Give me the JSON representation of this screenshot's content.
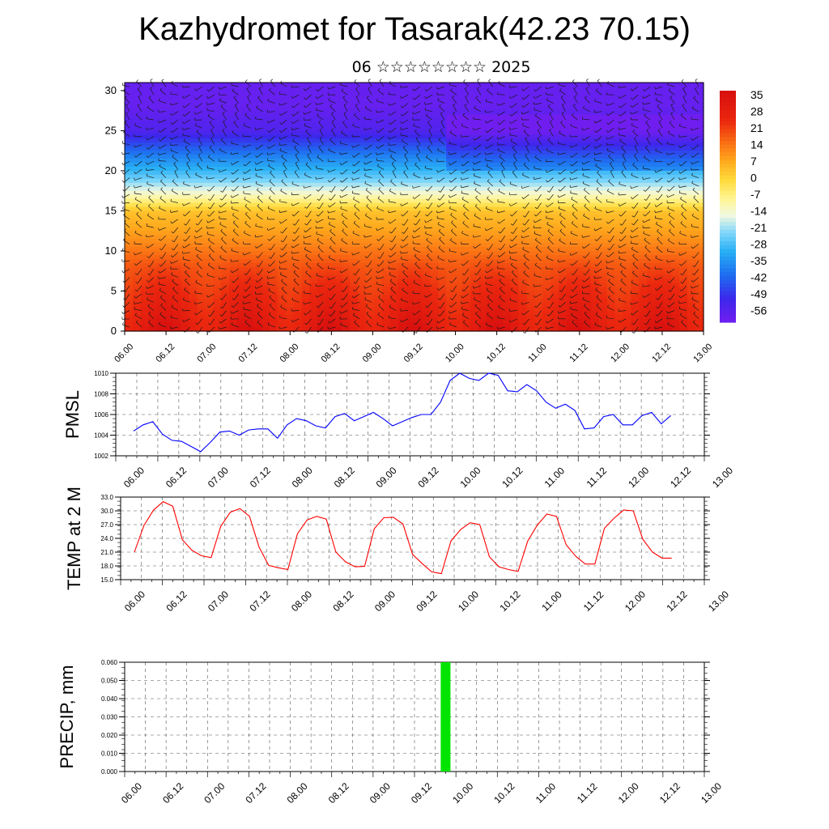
{
  "title": "Kazhydromet for Tasarak(42.23 70.15)",
  "subtitle": "06 ☆☆☆☆☆☆☆☆ 2025",
  "chart_data": [
    {
      "type": "heatmap",
      "name": "temperature-wind-cross-section",
      "x_tick_labels": [
        "06.00",
        "06.12",
        "07.00",
        "07.12",
        "08.00",
        "08.12",
        "09.00",
        "09.12",
        "10.00",
        "10.12",
        "11.00",
        "11.12",
        "12.00",
        "12.12",
        "13.00"
      ],
      "y_tick_labels": [
        "0",
        "5",
        "10",
        "15",
        "20",
        "25",
        "30"
      ],
      "ylim": [
        0,
        31
      ],
      "colorbar_labels": [
        "35",
        "28",
        "21",
        "14",
        "7",
        "0",
        "-7",
        "-14",
        "-21",
        "-28",
        "-35",
        "-42",
        "-49",
        "-56"
      ],
      "colorbar_range": [
        -60,
        38
      ],
      "colors": {
        "cold": "#7a1ef0",
        "warm": "#e8140a",
        "neutral": "#fff6b4"
      },
      "profile_levels": [
        0,
        4,
        8,
        12,
        15,
        17,
        19,
        22,
        25,
        28,
        31
      ],
      "profile_temperatures": [
        32,
        26,
        20,
        10,
        4,
        -12,
        -24,
        -38,
        -54,
        -58,
        -58
      ],
      "wind_barbs": true
    },
    {
      "type": "line",
      "name": "pmsl",
      "ylabel": "PMSL",
      "ylim": [
        1002,
        1010
      ],
      "y_tick_labels": [
        "1002",
        "1004",
        "1006",
        "1008",
        "1010"
      ],
      "y_ticks": [
        1002,
        1004,
        1006,
        1008,
        1010
      ],
      "x_tick_labels": [
        "06.00",
        "06.12",
        "07.00",
        "07.12",
        "08.00",
        "08.12",
        "09.00",
        "09.12",
        "10.00",
        "10.12",
        "11.00",
        "11.12",
        "12.00",
        "12.12",
        "13.00"
      ],
      "x_step_hours": 3,
      "color": "#0000ff",
      "values": [
        1004.4,
        1005.0,
        1005.3,
        1004.1,
        1003.5,
        1003.4,
        1002.9,
        1002.4,
        1003.3,
        1004.3,
        1004.4,
        1004.0,
        1004.5,
        1004.6,
        1004.6,
        1003.7,
        1005.0,
        1005.6,
        1005.4,
        1004.9,
        1004.7,
        1005.8,
        1006.1,
        1005.4,
        1005.8,
        1006.2,
        1005.6,
        1004.9,
        1005.3,
        1005.7,
        1006.0,
        1006.0,
        1007.2,
        1009.3,
        1010.0,
        1009.5,
        1009.3,
        1010.0,
        1009.8,
        1008.3,
        1008.2,
        1008.9,
        1008.3,
        1007.2,
        1006.6,
        1007.0,
        1006.4,
        1004.6,
        1004.7,
        1005.8,
        1006.0,
        1005.0,
        1005.0,
        1005.9,
        1006.2,
        1005.1,
        1005.9
      ]
    },
    {
      "type": "line",
      "name": "temp-2m",
      "ylabel": "TEMP at 2 M",
      "ylim": [
        15,
        33
      ],
      "y_tick_labels": [
        "15.0",
        "18.0",
        "21.0",
        "24.0",
        "27.0",
        "30.0",
        "33.0"
      ],
      "y_ticks": [
        15,
        18,
        21,
        24,
        27,
        30,
        33
      ],
      "x_tick_labels": [
        "06.00",
        "06.12",
        "07.00",
        "07.12",
        "08.00",
        "08.12",
        "09.00",
        "09.12",
        "10.00",
        "10.12",
        "11.00",
        "11.12",
        "12.00",
        "12.12",
        "13.00"
      ],
      "x_step_hours": 3,
      "color": "#ff0000",
      "values": [
        21.0,
        26.8,
        30.2,
        32.0,
        31.0,
        23.7,
        21.4,
        20.2,
        19.8,
        26.6,
        29.7,
        30.5,
        28.8,
        22.1,
        18.1,
        17.6,
        17.2,
        25.0,
        28.0,
        28.8,
        28.2,
        21.0,
        18.9,
        17.8,
        17.9,
        26.1,
        28.5,
        28.6,
        27.1,
        20.5,
        18.5,
        16.7,
        16.3,
        23.4,
        25.9,
        27.4,
        27.0,
        20.0,
        17.8,
        17.2,
        16.8,
        23.4,
        26.9,
        29.3,
        28.8,
        22.6,
        20.1,
        18.4,
        18.4,
        26.2,
        28.4,
        30.2,
        30.0,
        23.8,
        21.0,
        19.7,
        19.7
      ]
    },
    {
      "type": "bar",
      "name": "precip",
      "ylabel": "PRECIP, mm",
      "ylim": [
        0,
        0.06
      ],
      "y_tick_labels": [
        "0.000",
        "0.010",
        "0.020",
        "0.030",
        "0.040",
        "0.050",
        "0.060"
      ],
      "y_ticks": [
        0,
        0.01,
        0.02,
        0.03,
        0.04,
        0.05,
        0.06
      ],
      "x_tick_labels": [
        "06.00",
        "06.12",
        "07.00",
        "07.12",
        "08.00",
        "08.12",
        "09.00",
        "09.12",
        "10.00",
        "10.12",
        "11.00",
        "11.12",
        "12.00",
        "12.12",
        "13.00"
      ],
      "color": "#00e400",
      "bars": [
        {
          "x": "09.21",
          "value": 0.06
        }
      ]
    }
  ]
}
